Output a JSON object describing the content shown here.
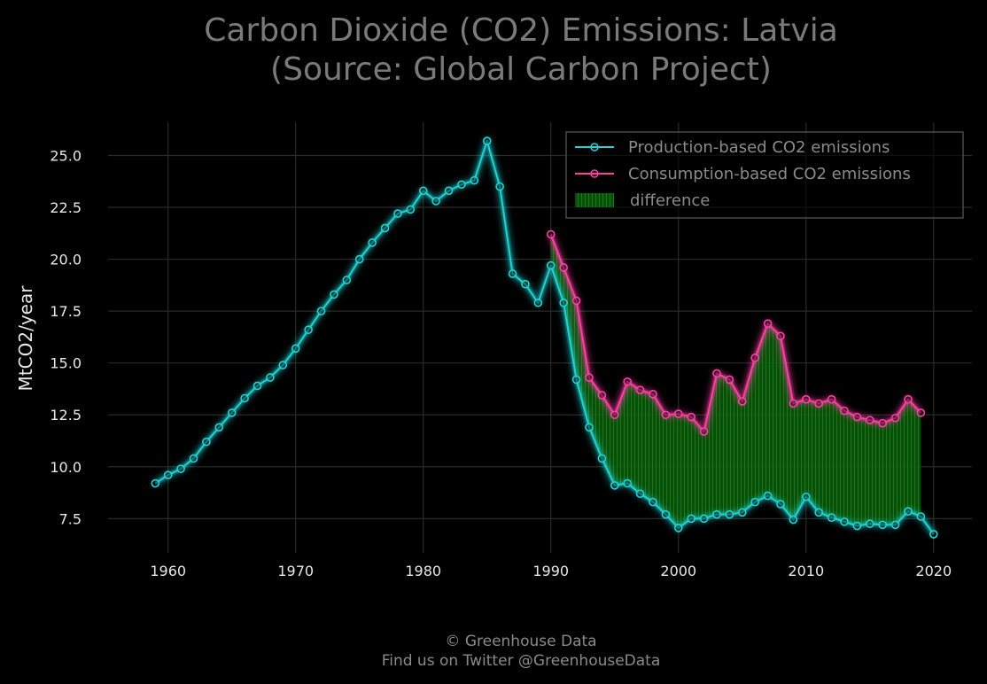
{
  "title_lines": [
    "Carbon Dioxide (CO2) Emissions: Latvia",
    "(Source: Global Carbon Project)"
  ],
  "footer_lines": [
    "© Greenhouse Data",
    "Find us on Twitter @GreenhouseData"
  ],
  "colors": {
    "background": "#000000",
    "production": "#22d3d3",
    "consumption": "#ff3fa4",
    "difference": "#0a6a0a",
    "grid": "#2a2a2a"
  },
  "chart_data": {
    "type": "line",
    "title": "Carbon Dioxide (CO2) Emissions: Latvia\n(Source: Global Carbon Project)",
    "xlabel": "",
    "ylabel": "MtCO2/year",
    "xlim": [
      1955.3,
      2023.0
    ],
    "ylim": [
      5.85,
      26.6
    ],
    "grid": true,
    "legend_position": "top-right",
    "x_ticks": [
      1960,
      1970,
      1980,
      1990,
      2000,
      2010,
      2020
    ],
    "y_ticks": [
      7.5,
      10.0,
      12.5,
      15.0,
      17.5,
      20.0,
      22.5,
      25.0
    ],
    "x_tick_labels": [
      "1960",
      "1970",
      "1980",
      "1990",
      "2000",
      "2010",
      "2020"
    ],
    "y_tick_labels": [
      "7.5",
      "10.0",
      "12.5",
      "15.0",
      "17.5",
      "20.0",
      "22.5",
      "25.0"
    ],
    "series": [
      {
        "name": "Production-based CO2 emissions",
        "x": [
          1959,
          1960,
          1961,
          1962,
          1963,
          1964,
          1965,
          1966,
          1967,
          1968,
          1969,
          1970,
          1971,
          1972,
          1973,
          1974,
          1975,
          1976,
          1977,
          1978,
          1979,
          1980,
          1981,
          1982,
          1983,
          1984,
          1985,
          1986,
          1987,
          1988,
          1989,
          1990,
          1991,
          1992,
          1993,
          1994,
          1995,
          1996,
          1997,
          1998,
          1999,
          2000,
          2001,
          2002,
          2003,
          2004,
          2005,
          2006,
          2007,
          2008,
          2009,
          2010,
          2011,
          2012,
          2013,
          2014,
          2015,
          2016,
          2017,
          2018,
          2019,
          2020
        ],
        "values": [
          9.2,
          9.6,
          9.9,
          10.4,
          11.2,
          11.9,
          12.6,
          13.3,
          13.9,
          14.3,
          14.9,
          15.7,
          16.6,
          17.5,
          18.3,
          19.0,
          20.0,
          20.8,
          21.5,
          22.2,
          22.4,
          23.3,
          22.8,
          23.3,
          23.6,
          23.8,
          25.7,
          23.5,
          19.3,
          18.8,
          17.9,
          19.7,
          17.9,
          14.2,
          11.9,
          10.4,
          9.1,
          9.2,
          8.7,
          8.3,
          7.7,
          7.05,
          7.5,
          7.5,
          7.7,
          7.7,
          7.8,
          8.3,
          8.6,
          8.2,
          7.45,
          8.55,
          7.8,
          7.55,
          7.35,
          7.15,
          7.25,
          7.2,
          7.2,
          7.85,
          7.6,
          6.75
        ]
      },
      {
        "name": "Consumption-based CO2 emissions",
        "x": [
          1990,
          1991,
          1992,
          1993,
          1994,
          1995,
          1996,
          1997,
          1998,
          1999,
          2000,
          2001,
          2002,
          2003,
          2004,
          2005,
          2006,
          2007,
          2008,
          2009,
          2010,
          2011,
          2012,
          2013,
          2014,
          2015,
          2016,
          2017,
          2018,
          2019
        ],
        "values": [
          21.2,
          19.6,
          18.0,
          14.3,
          13.45,
          12.5,
          14.1,
          13.7,
          13.5,
          12.5,
          12.55,
          12.4,
          11.7,
          14.5,
          14.2,
          13.15,
          15.25,
          16.9,
          16.3,
          13.05,
          13.25,
          13.05,
          13.25,
          12.7,
          12.4,
          12.25,
          12.1,
          12.35,
          13.25,
          12.6
        ]
      }
    ],
    "fill_between": {
      "name": "difference",
      "upper": "Consumption-based CO2 emissions",
      "lower": "Production-based CO2 emissions",
      "x_range": [
        1990,
        2019
      ]
    }
  }
}
